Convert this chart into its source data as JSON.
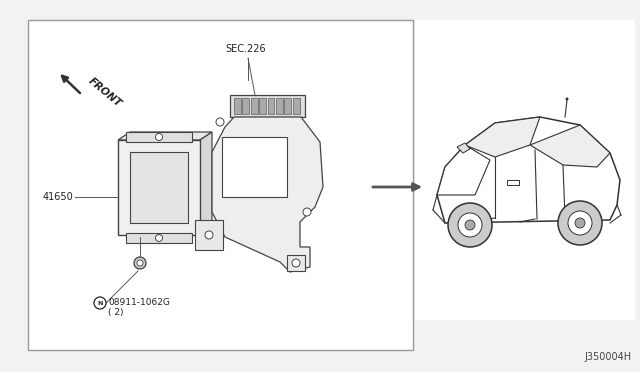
{
  "bg_color": "#f2f2f2",
  "box_bg": "#ffffff",
  "car_bg": "#ffffff",
  "title_code": "J350004H",
  "sec_label": "SEC.226",
  "front_label": "FRONT",
  "part_41650": "41650",
  "part_bolt": "08911-1062G\n( 2)",
  "arrow_color": "#333333",
  "text_color": "#222222",
  "line_color": "#444444",
  "thin_line": "#555555"
}
